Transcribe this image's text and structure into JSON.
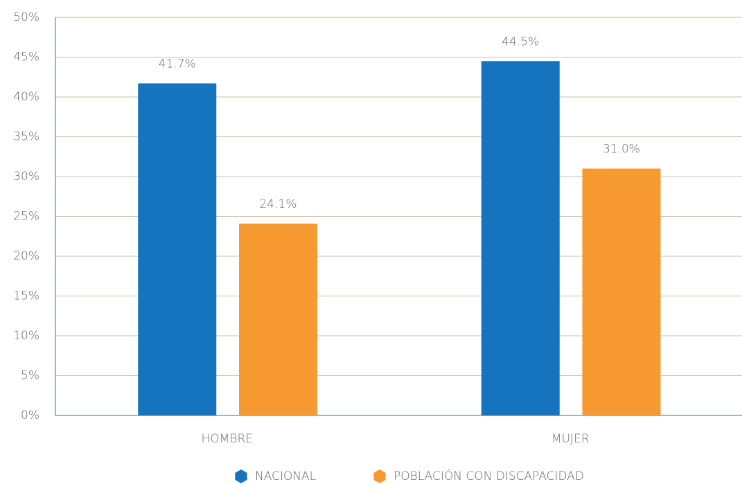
{
  "chart_data": {
    "type": "bar",
    "categories": [
      "HOMBRE",
      "MUJER"
    ],
    "series": [
      {
        "name": "NACIONAL",
        "color": "#1674bf",
        "values": [
          41.7,
          44.5
        ],
        "value_labels": [
          "41.7%",
          "44.5%"
        ]
      },
      {
        "name": "POBLACIÓN CON DISCAPACIDAD",
        "color": "#f79a32",
        "values": [
          24.1,
          31.0
        ],
        "value_labels": [
          "24.1%",
          "31.0%"
        ]
      }
    ],
    "ylim": [
      0,
      50
    ],
    "yticks": [
      {
        "value": 0,
        "label": "0%"
      },
      {
        "value": 5,
        "label": "5%"
      },
      {
        "value": 10,
        "label": "10%"
      },
      {
        "value": 15,
        "label": "15%"
      },
      {
        "value": 20,
        "label": "20%"
      },
      {
        "value": 25,
        "label": "25%"
      },
      {
        "value": 30,
        "label": "30%"
      },
      {
        "value": 35,
        "label": "35%"
      },
      {
        "value": 40,
        "label": "40%"
      },
      {
        "value": 45,
        "label": "45%"
      },
      {
        "value": 50,
        "label": "50%"
      }
    ],
    "grid": true,
    "legend": "bottom"
  }
}
